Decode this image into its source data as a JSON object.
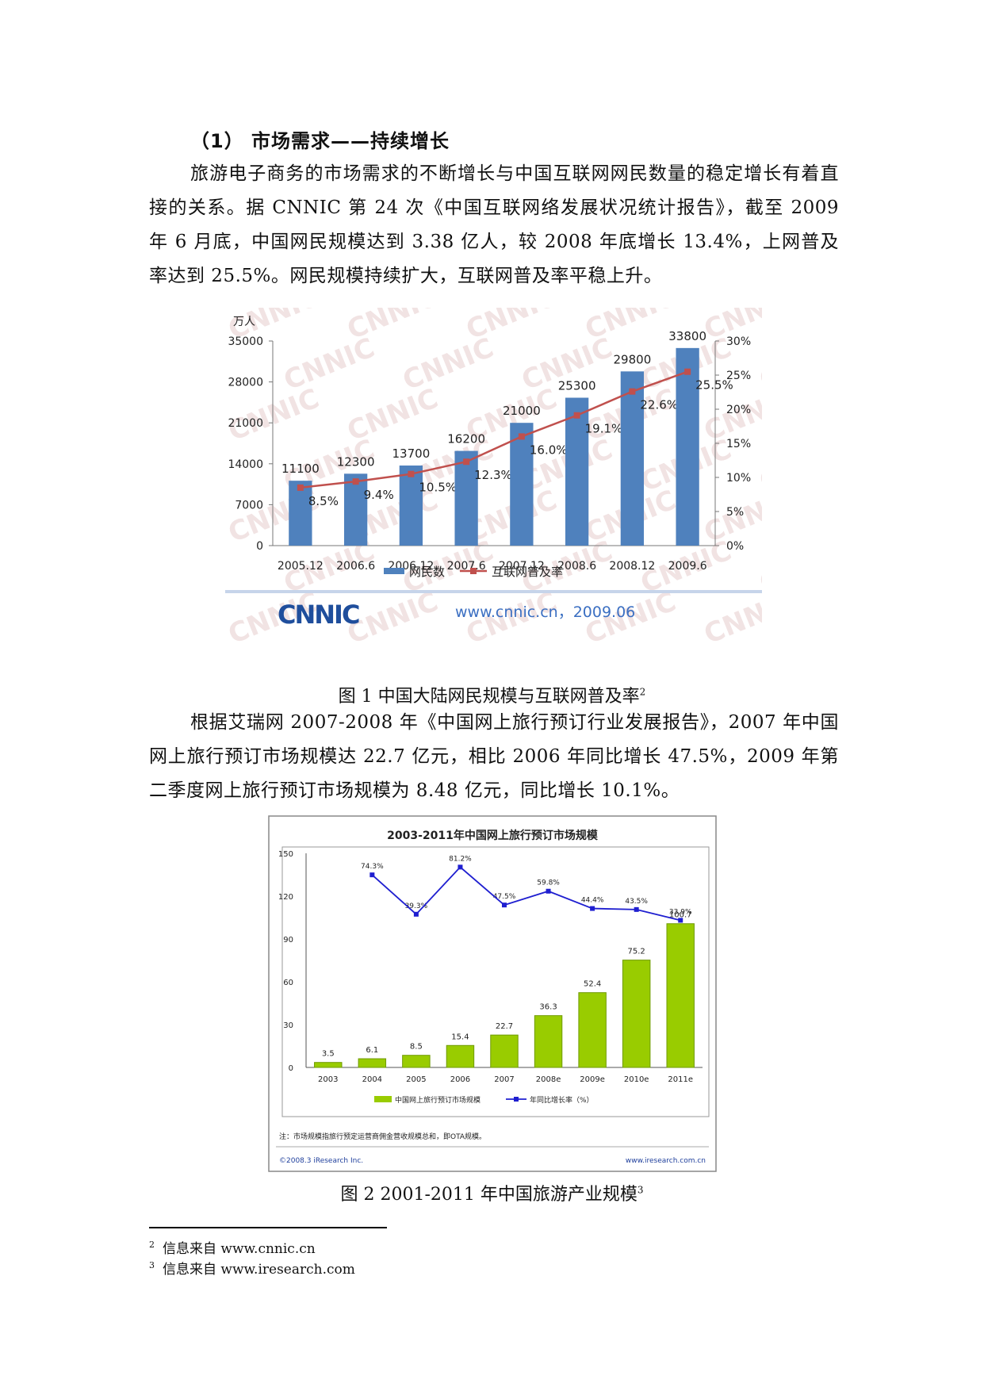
{
  "section": {
    "heading": "（1）  市场需求——持续增长"
  },
  "paragraphs": [
    "旅游电子商务的市场需求的不断增长与中国互联网网民数量的稳定增长有着直接的关系。据 CNNIC 第 24 次《中国互联网络发展状况统计报告》，截至 2009 年 6 月底，中国网民规模达到 3.38 亿人，较 2008 年底增长 13.4%，上网普及率达到 25.5%。网民规模持续扩大，互联网普及率平稳上升。",
    "根据艾瑞网 2007-2008 年《中国网上旅行预订行业发展报告》，2007 年中国网上旅行预订市场规模达 22.7 亿元，相比 2006 年同比增长 47.5%，2009 年第二季度网上旅行预订市场规模为 8.48 亿元，同比增长 10.1%。"
  ],
  "captions": {
    "fig1": "图  1  中国大陆网民规模与互联网普及率",
    "fig1_ref": "2",
    "fig2": "图 2  2001-2011 年中国旅游产业规模",
    "fig2_ref": "3"
  },
  "footnotes": [
    {
      "num": "2",
      "text": "信息来自 www.cnnic.cn"
    },
    {
      "num": "3",
      "text": "信息来自 www.iresearch.com"
    }
  ],
  "colors": {
    "cnnic_bar": "#4f81bd",
    "cnnic_line": "#c0504d",
    "ir_bar": "#99cc00",
    "ir_line": "#1f1fd0"
  },
  "chart_data": [
    {
      "type": "bar",
      "yunit": "万人",
      "categories": [
        "2005.12",
        "2006.6",
        "2006.12",
        "2007.6",
        "2007.12",
        "2008.6",
        "2008.12",
        "2009.6"
      ],
      "series": [
        {
          "name": "网民数",
          "type": "bar",
          "axis": "left",
          "values": [
            11100,
            12300,
            13700,
            16200,
            21000,
            25300,
            29800,
            33800
          ]
        },
        {
          "name": "互联网普及率",
          "type": "line",
          "axis": "right",
          "values": [
            8.5,
            9.4,
            10.5,
            12.3,
            16.0,
            19.1,
            22.6,
            25.5
          ]
        }
      ],
      "bar_labels": [
        "11100",
        "12300",
        "13700",
        "16200",
        "21000",
        "25300",
        "29800",
        "33800"
      ],
      "line_labels": [
        "8.5%",
        "9.4%",
        "10.5%",
        "12.3%",
        "16.0%",
        "19.1%",
        "22.6%",
        "25.5%"
      ],
      "left_ticks": [
        "0",
        "7000",
        "14000",
        "21000",
        "28000",
        "35000"
      ],
      "right_ticks": [
        "0%",
        "5%",
        "10%",
        "15%",
        "20%",
        "25%",
        "30%"
      ],
      "ylim_left": [
        0,
        35000
      ],
      "ylim_right": [
        0,
        30
      ],
      "legend_placement": "bottom",
      "watermark": "CNNIC",
      "logo": "CNNIC",
      "source": "www.cnnic.cn，2009.06"
    },
    {
      "type": "bar",
      "title": "2003-2011年中国网上旅行预订市场规模",
      "categories": [
        "2003",
        "2004",
        "2005",
        "2006",
        "2007",
        "2008e",
        "2009e",
        "2010e",
        "2011e"
      ],
      "series": [
        {
          "name": "中国网上旅行预订市场规模",
          "type": "bar",
          "axis": "left",
          "values": [
            3.5,
            6.1,
            8.5,
            15.4,
            22.7,
            36.3,
            52.4,
            75.2,
            100.7
          ]
        },
        {
          "name": "年同比增长率（%）",
          "type": "line",
          "axis": "right",
          "values": [
            null,
            74.3,
            39.3,
            81.2,
            47.5,
            59.8,
            44.4,
            43.5,
            33.9
          ]
        }
      ],
      "bar_labels": [
        "3.5",
        "6.1",
        "8.5",
        "15.4",
        "22.7",
        "36.3",
        "52.4",
        "75.2",
        "100.7"
      ],
      "line_labels": [
        "",
        "74.3%",
        "39.3%",
        "81.2%",
        "47.5%",
        "59.8%",
        "44.4%",
        "43.5%",
        "33.9%"
      ],
      "left_ticks": [
        "0",
        "30",
        "60",
        "90",
        "120",
        "150"
      ],
      "ylim_left": [
        0,
        150
      ],
      "legend_placement": "bottom",
      "note": "注：市场规模指旅行预定运营商佣金营收规模总和，即OTA规模。",
      "copyright": "©2008.3 iResearch Inc.",
      "site": "www.iresearch.com.cn"
    }
  ]
}
